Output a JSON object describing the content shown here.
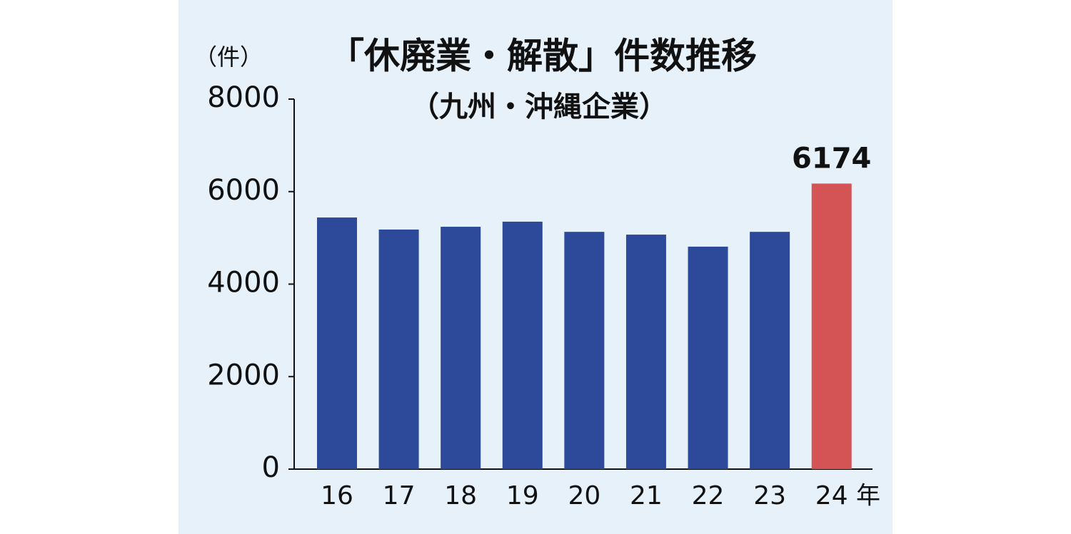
{
  "chart_data": {
    "type": "bar",
    "title": "「休廃業・解散」件数推移",
    "subtitle": "（九州・沖縄企業）",
    "y_label": "（件）",
    "x_label": "年",
    "categories": [
      "16",
      "17",
      "18",
      "19",
      "20",
      "21",
      "22",
      "23",
      "24"
    ],
    "values": [
      5440,
      5180,
      5240,
      5350,
      5130,
      5070,
      4810,
      5130,
      6174
    ],
    "value_labels": [
      null,
      null,
      null,
      null,
      null,
      null,
      null,
      null,
      "6174"
    ],
    "colors": [
      "#2c4a99",
      "#2c4a99",
      "#2c4a99",
      "#2c4a99",
      "#2c4a99",
      "#2c4a99",
      "#2c4a99",
      "#2c4a99",
      "#d45455"
    ],
    "ylim": [
      0,
      8000
    ],
    "yticks": [
      0,
      2000,
      4000,
      6000,
      8000
    ],
    "grid": false
  }
}
